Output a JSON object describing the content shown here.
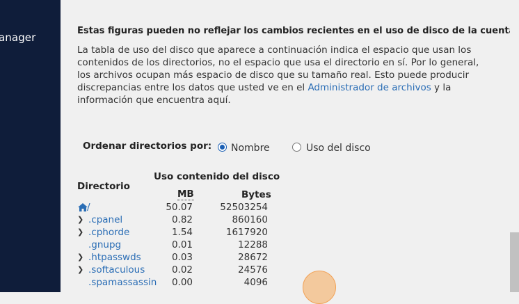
{
  "sidebar": {
    "partial_label": "anager"
  },
  "content": {
    "warning": "Estas figuras pueden no reflejar los cambios recientes en el uso de disco de la cuenta.",
    "desc_part1": "La tabla de uso del disco que aparece a continuación indica el espacio que usan los contenidos de los directorios, no el espacio que usa el directorio en sí. Por lo general, los archivos ocupan más espacio de disco que su tamaño real. Esto puede producir discrepancias entre los datos que usted ve en el ",
    "desc_link": "Administrador de archivos",
    "desc_part2": " y la información que encuentra aquí."
  },
  "sort": {
    "label": "Ordenar directorios por:",
    "option_name": "Nombre",
    "option_disk": "Uso del disco",
    "selected": "Nombre"
  },
  "table": {
    "header_group": "Uso contenido del disco",
    "col_dir": "Directorio",
    "col_mb": "MB",
    "col_bytes": "Bytes",
    "rows": [
      {
        "name": "/",
        "mb": "50.07",
        "bytes": "52503254",
        "expandable": false,
        "home": true
      },
      {
        "name": ".cpanel",
        "mb": "0.82",
        "bytes": "860160",
        "expandable": true
      },
      {
        "name": ".cphorde",
        "mb": "1.54",
        "bytes": "1617920",
        "expandable": true
      },
      {
        "name": ".gnupg",
        "mb": "0.01",
        "bytes": "12288",
        "expandable": false
      },
      {
        "name": ".htpasswds",
        "mb": "0.03",
        "bytes": "28672",
        "expandable": true
      },
      {
        "name": ".softaculous",
        "mb": "0.02",
        "bytes": "24576",
        "expandable": true
      },
      {
        "name": ".spamassassin",
        "mb": "0.00",
        "bytes": "4096",
        "expandable": false
      }
    ]
  },
  "colors": {
    "sidebar": "#0f1d3a",
    "link": "#2a6db5",
    "highlight": "#f2a155"
  }
}
